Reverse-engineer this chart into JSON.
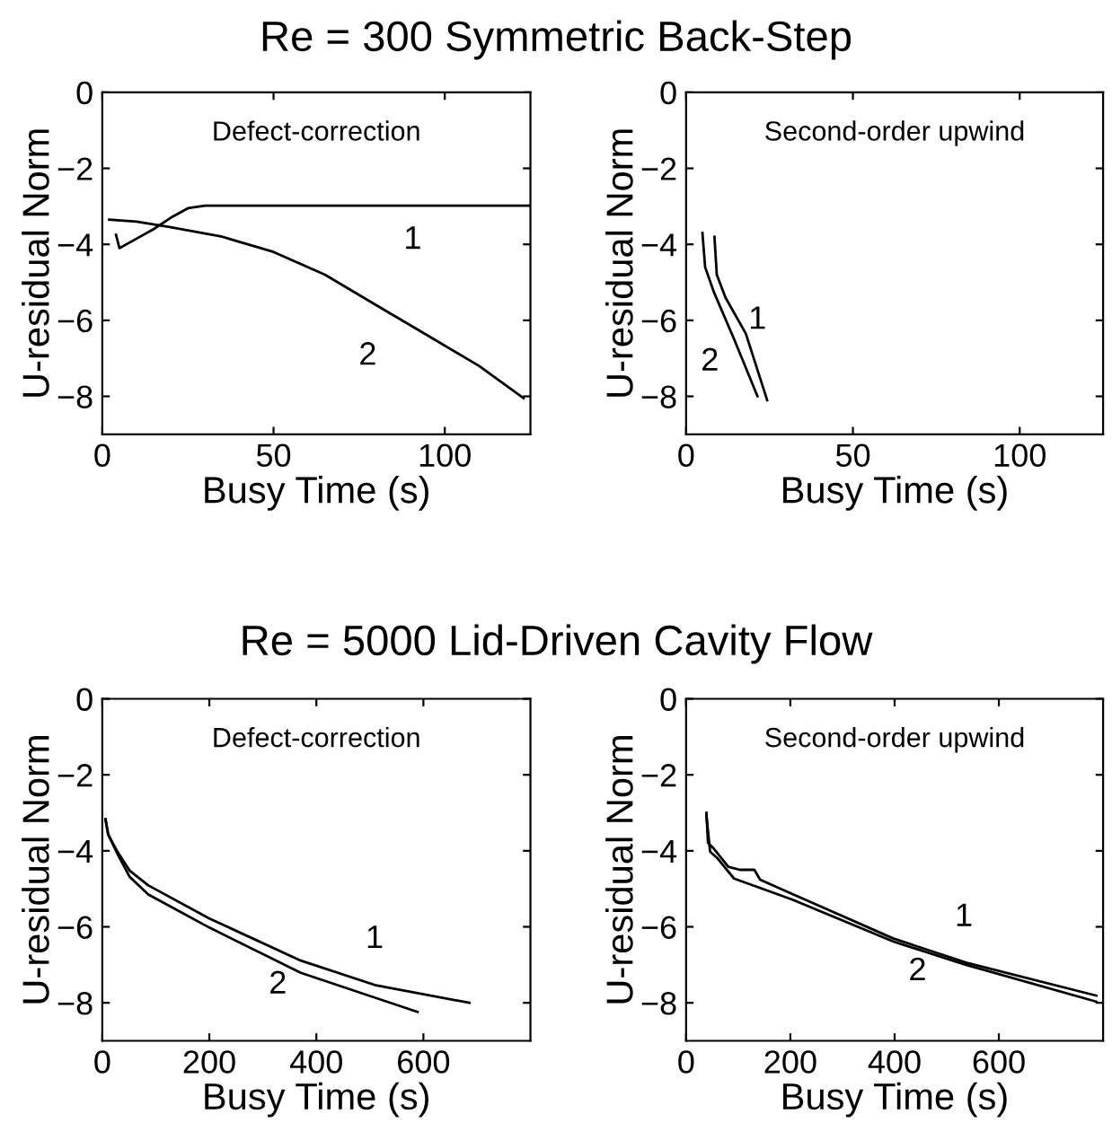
{
  "chart_data": [
    {
      "type": "line",
      "title": "Re = 300 Symmetric Back-Step",
      "xlabel": "Busy Time (s)",
      "ylabel": "U-residual Norm",
      "xlim": [
        0,
        125
      ],
      "xticks": [
        0,
        50,
        100
      ],
      "ylim": [
        -9,
        0
      ],
      "yticks": [
        0,
        -2,
        -4,
        -6,
        -8
      ],
      "grid": false,
      "legend": false,
      "marker": "none",
      "line_style": "solid",
      "annotations": [
        "Defect-correction",
        "1",
        "2"
      ],
      "series": [
        {
          "color": "#000000",
          "x": [
            4,
            5,
            10,
            15,
            20,
            25,
            30,
            125
          ],
          "values": [
            -3.75,
            -4.1,
            -3.85,
            -3.6,
            -3.3,
            -3.05,
            -2.98,
            -2.98
          ]
        },
        {
          "color": "#000000",
          "x": [
            2,
            10,
            20,
            35,
            50,
            65,
            80,
            95,
            110,
            123
          ],
          "values": [
            -3.35,
            -3.4,
            -3.55,
            -3.8,
            -4.2,
            -4.8,
            -5.6,
            -6.4,
            -7.2,
            -8.05
          ]
        }
      ]
    },
    {
      "type": "line",
      "xlabel": "Busy Time (s)",
      "ylabel": "U-residual Norm",
      "xlim": [
        0,
        125
      ],
      "xticks": [
        0,
        50,
        100
      ],
      "ylim": [
        -9,
        0
      ],
      "yticks": [
        0,
        -2,
        -4,
        -6,
        -8
      ],
      "grid": false,
      "legend": false,
      "marker": "none",
      "line_style": "solid",
      "annotations": [
        "Second-order upwind",
        "1",
        "2"
      ],
      "series": [
        {
          "color": "#000000",
          "x": [
            8.5,
            9.2,
            11.8,
            17.9,
            24.3
          ],
          "values": [
            -3.8,
            -4.8,
            -5.4,
            -6.35,
            -8.1
          ]
        },
        {
          "color": "#000000",
          "x": [
            4.9,
            5.7,
            8.3,
            14.4,
            21.4
          ],
          "values": [
            -3.7,
            -4.6,
            -5.25,
            -6.5,
            -8.0
          ]
        }
      ]
    },
    {
      "type": "line",
      "title": "Re = 5000 Lid-Driven Cavity Flow",
      "xlabel": "Busy Time (s)",
      "ylabel": "U-residual Norm",
      "xlim": [
        0,
        800
      ],
      "xticks": [
        0,
        200,
        400,
        600
      ],
      "ylim": [
        -9,
        0
      ],
      "yticks": [
        0,
        -2,
        -4,
        -6,
        -8
      ],
      "grid": false,
      "legend": false,
      "marker": "none",
      "line_style": "solid",
      "annotations": [
        "Defect-correction",
        "1",
        "2"
      ],
      "series": [
        {
          "color": "#000000",
          "x": [
            6,
            11,
            29,
            51,
            86,
            200,
            371,
            509,
            686
          ],
          "values": [
            -3.17,
            -3.57,
            -4.04,
            -4.52,
            -4.91,
            -5.78,
            -6.89,
            -7.53,
            -8.0
          ]
        },
        {
          "color": "#000000",
          "x": [
            6,
            11,
            29,
            51,
            86,
            200,
            371,
            589
          ],
          "values": [
            -3.17,
            -3.57,
            -4.1,
            -4.68,
            -5.15,
            -6.02,
            -7.21,
            -8.24
          ]
        }
      ]
    },
    {
      "type": "line",
      "xlabel": "Busy Time (s)",
      "ylabel": "U-residual Norm",
      "xlim": [
        0,
        800
      ],
      "xticks": [
        0,
        200,
        400,
        600
      ],
      "ylim": [
        -9,
        0
      ],
      "yticks": [
        0,
        -2,
        -4,
        -6,
        -8
      ],
      "grid": false,
      "legend": false,
      "marker": "none",
      "line_style": "solid",
      "annotations": [
        "Second-order upwind",
        "1",
        "2"
      ],
      "series": [
        {
          "color": "#000000",
          "x": [
            39,
            42,
            53,
            81,
            103,
            131,
            142,
            203,
            398,
            537,
            787
          ],
          "values": [
            -3.0,
            -3.79,
            -3.94,
            -4.42,
            -4.5,
            -4.5,
            -4.76,
            -5.13,
            -6.31,
            -6.94,
            -7.81
          ]
        },
        {
          "color": "#000000",
          "x": [
            39,
            46,
            59,
            92,
            203,
            398,
            537,
            787
          ],
          "values": [
            -3.08,
            -4.02,
            -4.18,
            -4.73,
            -5.28,
            -6.39,
            -7.0,
            -7.97
          ]
        }
      ]
    }
  ]
}
